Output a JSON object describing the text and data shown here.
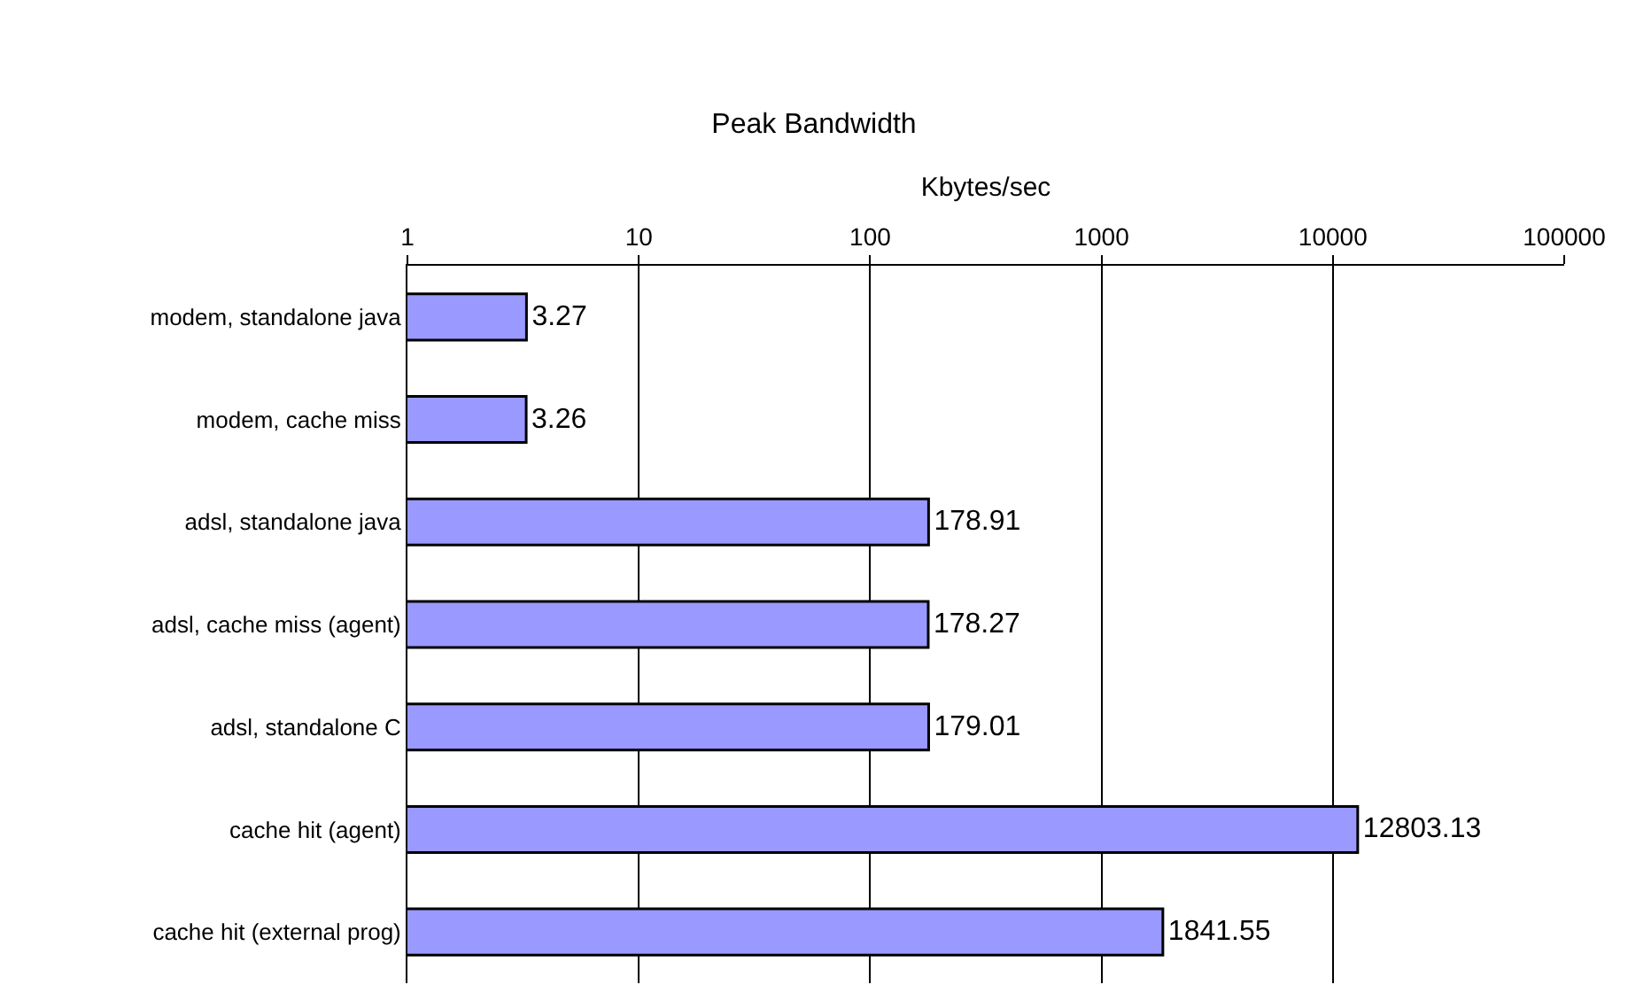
{
  "chart_data": {
    "type": "bar",
    "orientation": "horizontal",
    "title": "Peak Bandwidth",
    "xlabel": "Kbytes/sec",
    "categories": [
      "modem, standalone java",
      "modem, cache miss",
      "adsl, standalone java",
      "adsl, cache miss (agent)",
      "adsl, standalone C",
      "cache hit (agent)",
      "cache hit (external prog)"
    ],
    "values": [
      3.27,
      3.26,
      178.91,
      178.27,
      179.01,
      12803.13,
      1841.55
    ],
    "color": "#9999ff",
    "log": "x",
    "xlim": [
      1,
      100000
    ],
    "xticks": [
      1,
      10,
      100,
      1000,
      10000,
      100000
    ],
    "grid": "x",
    "data_labels": true,
    "legend": false
  }
}
